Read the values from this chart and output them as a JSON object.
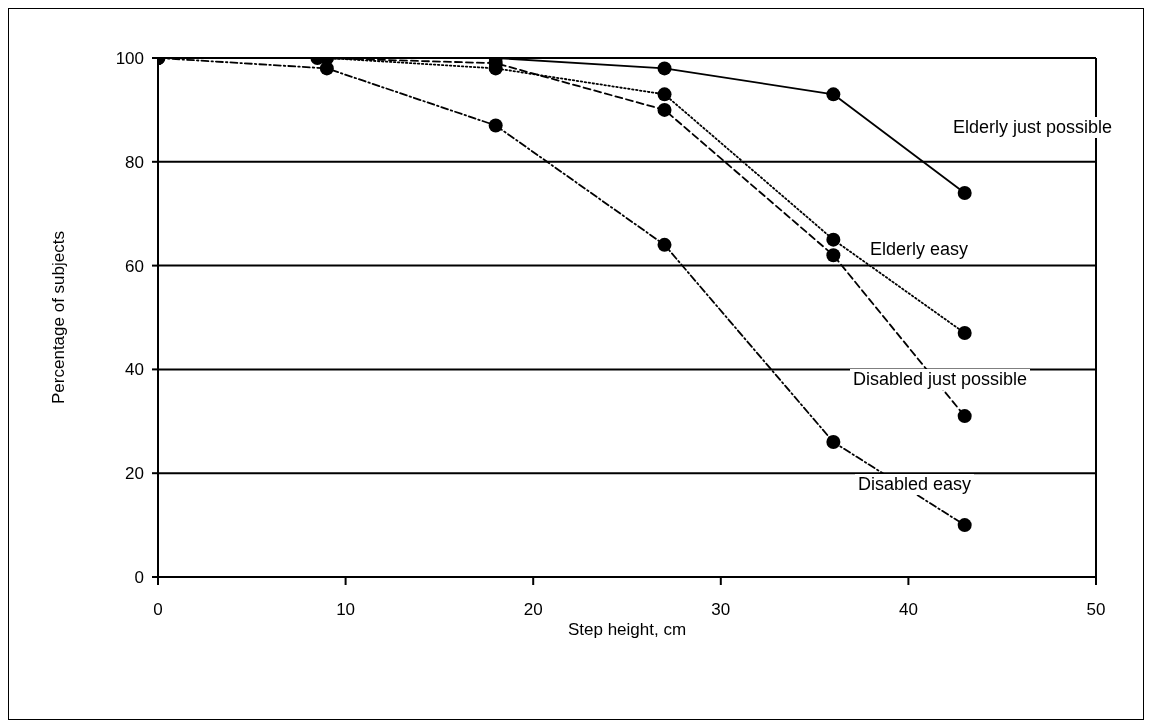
{
  "chart_data": {
    "type": "line",
    "xlabel": "Step height, cm",
    "ylabel": "Percentage of subjects",
    "xlim": [
      0,
      50
    ],
    "xticks": [
      0,
      10,
      20,
      30,
      40,
      50
    ],
    "ylim": [
      0,
      100
    ],
    "yticks": [
      0,
      20,
      40,
      60,
      80,
      100
    ],
    "grid": "y",
    "marker": "circle",
    "series": [
      {
        "name": "Elderly just possible",
        "color": "#000000",
        "line_style": "solid",
        "x": [
          0,
          9,
          18,
          27,
          36,
          43
        ],
        "values": [
          100,
          100,
          100,
          98,
          93,
          74
        ]
      },
      {
        "name": "Elderly easy",
        "color": "#000000",
        "line_style": "dotted",
        "x": [
          0,
          9,
          18,
          27,
          36,
          43
        ],
        "values": [
          100,
          100,
          98,
          93,
          65,
          47
        ]
      },
      {
        "name": "Disabled just possible",
        "color": "#000000",
        "line_style": "dashed",
        "x": [
          0,
          8.5,
          18,
          27,
          36,
          43
        ],
        "values": [
          100,
          100,
          99,
          90,
          62,
          31
        ]
      },
      {
        "name": "Disabled easy",
        "color": "#000000",
        "line_style": "dashdot",
        "x": [
          0,
          9,
          18,
          27,
          36,
          43
        ],
        "values": [
          100,
          98,
          87,
          64,
          26,
          10
        ]
      }
    ]
  }
}
